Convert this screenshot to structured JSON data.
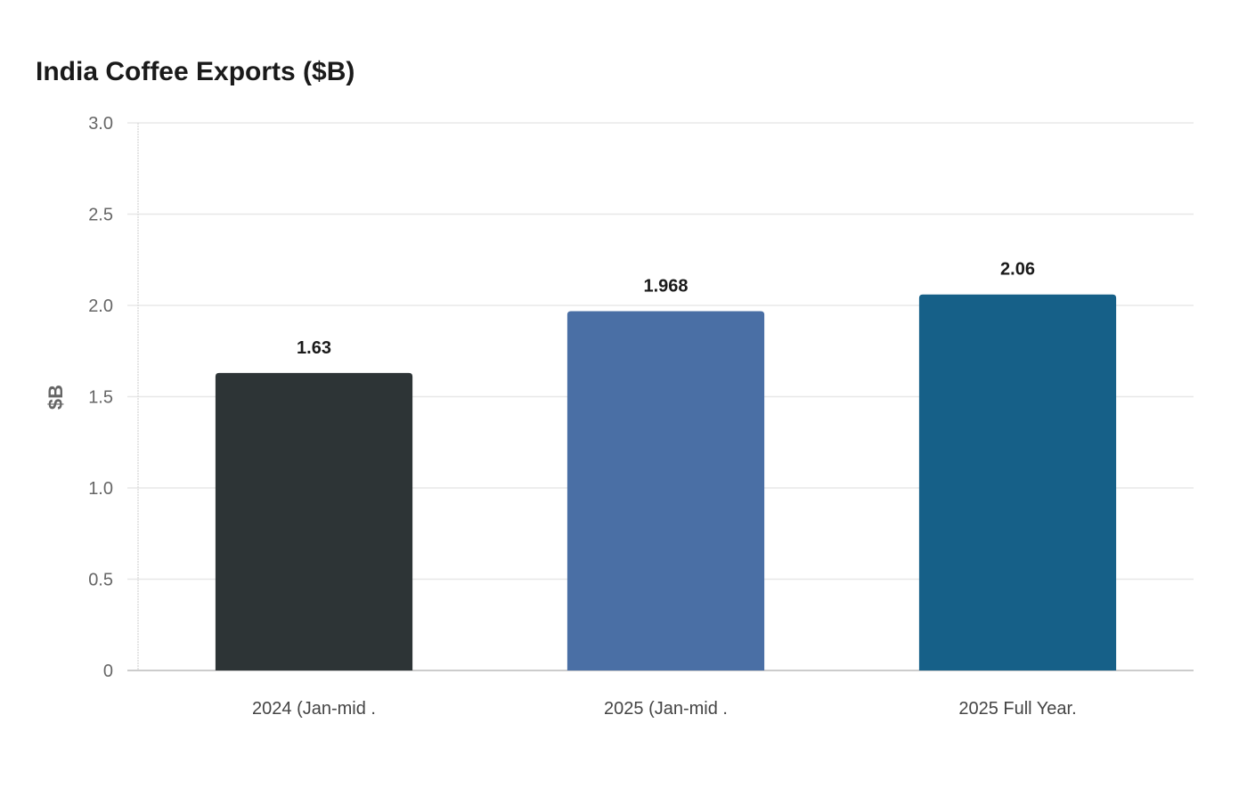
{
  "chart_data": {
    "type": "bar",
    "title": "India Coffee Exports ($B)",
    "xlabel": "",
    "ylabel": "$B",
    "categories": [
      "2024 (Jan-mid .",
      "2025 (Jan-mid .",
      "2025 Full Year."
    ],
    "values": [
      1.63,
      1.968,
      2.06
    ],
    "value_labels": [
      "1.63",
      "1.968",
      "2.06"
    ],
    "colors": [
      "#2d3436",
      "#4a6fa5",
      "#166088"
    ],
    "ylim": [
      0,
      3
    ],
    "yticks": [
      0,
      0.5,
      1,
      1.5,
      2,
      2.5,
      3
    ],
    "ytick_labels": [
      "0",
      "0.5",
      "1.0",
      "1.5",
      "2.0",
      "2.5",
      "3.0"
    ],
    "grid": true,
    "legend": "none"
  }
}
